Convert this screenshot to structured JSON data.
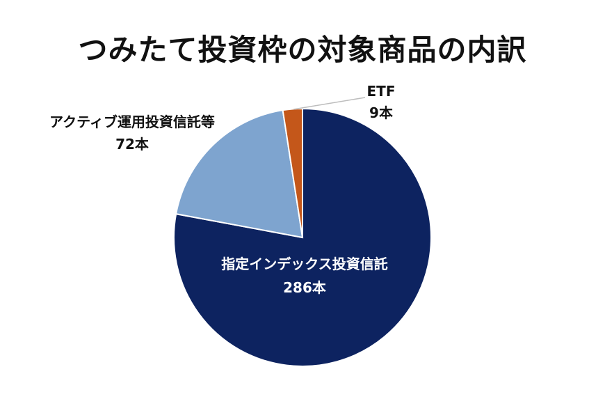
{
  "chart_data": {
    "type": "pie",
    "title": "つみたて投資枠の対象商品の内訳",
    "unit": "本",
    "start_angle_deg": 0,
    "direction": "clockwise",
    "slices": [
      {
        "name": "指定インデックス投資信託",
        "value": 286,
        "value_label": "286本",
        "color": "#0d2360"
      },
      {
        "name": "アクティブ運用投資信託等",
        "value": 72,
        "value_label": "72本",
        "color": "#7ea4cf"
      },
      {
        "name": "ETF",
        "value": 9,
        "value_label": "9本",
        "color": "#c4571a"
      }
    ]
  }
}
